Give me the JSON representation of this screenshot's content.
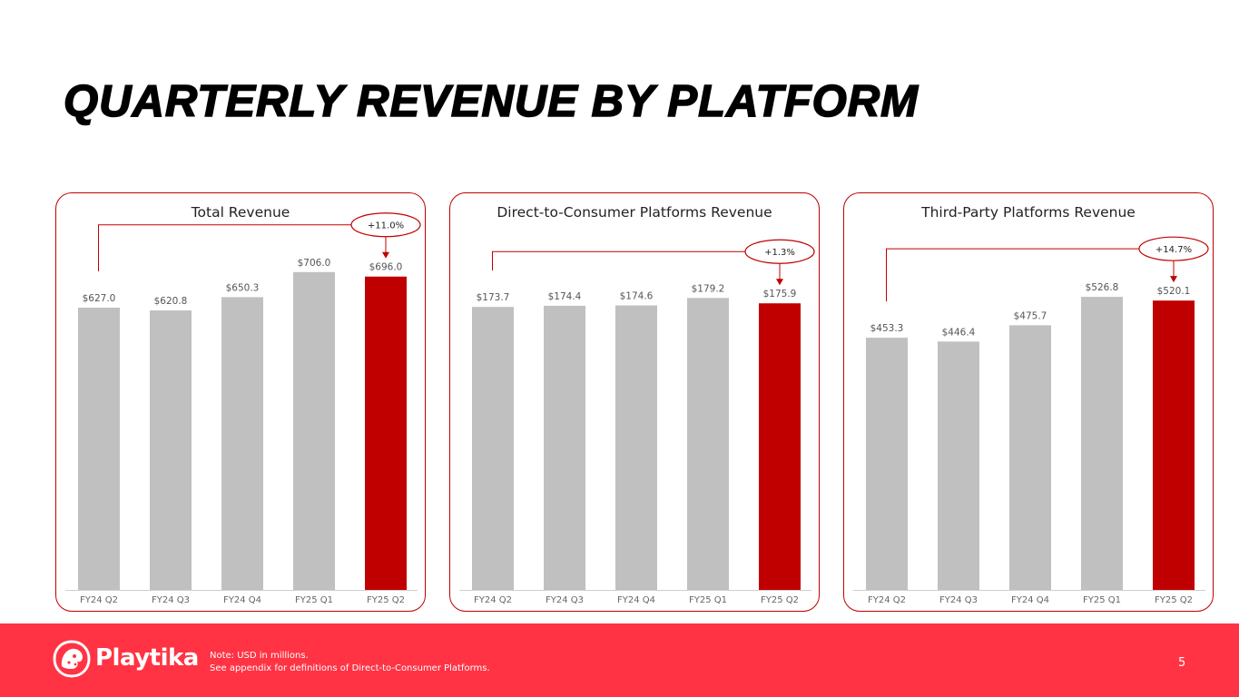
{
  "title": "QUARTERLY REVENUE BY PLATFORM",
  "colors": {
    "accent": "#c00000",
    "bar_gray": "#c0c0c0",
    "footer_bg": "#ff3344",
    "border": "#c00000"
  },
  "chart_data": [
    {
      "type": "bar",
      "title": "Total Revenue",
      "categories": [
        "FY24 Q2",
        "FY24 Q3",
        "FY24 Q4",
        "FY25 Q1",
        "FY25 Q2"
      ],
      "values": [
        627.0,
        620.8,
        650.3,
        706.0,
        696.0
      ],
      "labels": [
        "$627.0",
        "$620.8",
        "$650.3",
        "$706.0",
        "$696.0"
      ],
      "highlight_index": 4,
      "growth_label": "+11.0%",
      "ylim": [
        0,
        760
      ]
    },
    {
      "type": "bar",
      "title": "Direct-to-Consumer Platforms Revenue",
      "categories": [
        "FY24 Q2",
        "FY24 Q3",
        "FY24 Q4",
        "FY25 Q1",
        "FY25 Q2"
      ],
      "values": [
        173.7,
        174.4,
        174.6,
        179.2,
        175.9
      ],
      "labels": [
        "$173.7",
        "$174.4",
        "$174.6",
        "$179.2",
        "$175.9"
      ],
      "highlight_index": 4,
      "growth_label": "+1.3%",
      "ylim": [
        0,
        210
      ]
    },
    {
      "type": "bar",
      "title": "Third-Party Platforms Revenue",
      "categories": [
        "FY24 Q2",
        "FY24 Q3",
        "FY24 Q4",
        "FY25 Q1",
        "FY25 Q2"
      ],
      "values": [
        453.3,
        446.4,
        475.7,
        526.8,
        520.1
      ],
      "labels": [
        "$453.3",
        "$446.4",
        "$475.7",
        "$526.8",
        "$520.1"
      ],
      "highlight_index": 4,
      "growth_label": "+14.7%",
      "ylim": [
        0,
        615
      ]
    }
  ],
  "footer": {
    "brand": "Playtika",
    "logo_icon": "cheetah-logo-icon",
    "note_line1": "Note:  USD in millions.",
    "note_line2": "See appendix for definitions of Direct-to-Consumer Platforms.",
    "page_number": "5"
  }
}
